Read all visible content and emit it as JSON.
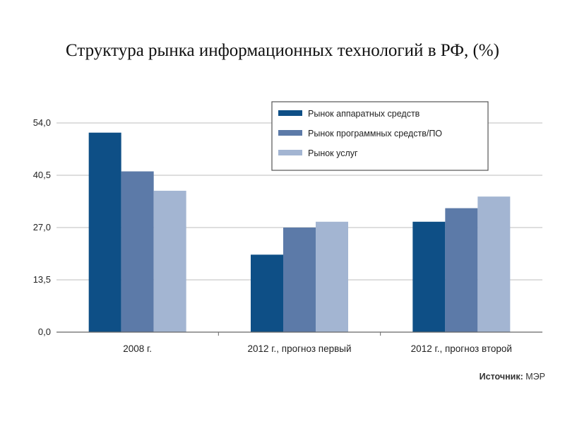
{
  "title": "Структура рынка информационных технологий в РФ, (%)",
  "source": {
    "label": "Источник:",
    "value": "МЭР"
  },
  "chart_data": {
    "type": "bar",
    "categories": [
      "2008 г.",
      "2012 г., прогноз первый",
      "2012 г., прогноз второй"
    ],
    "series": [
      {
        "name": "Рынок аппаратных средств",
        "color": "#0e4f86",
        "values": [
          51.5,
          20.0,
          28.5
        ]
      },
      {
        "name": "Рынок программных средств/ПО",
        "color": "#5c7aa8",
        "values": [
          41.5,
          27.0,
          32.0
        ]
      },
      {
        "name": "Рынок услуг",
        "color": "#a3b5d2",
        "values": [
          36.5,
          28.5,
          35.0
        ]
      }
    ],
    "yticks": [
      "0,0",
      "13,5",
      "27,0",
      "40,5",
      "54,0"
    ],
    "ylim": [
      0,
      54
    ],
    "grid": true,
    "legend_position": "top-right"
  }
}
